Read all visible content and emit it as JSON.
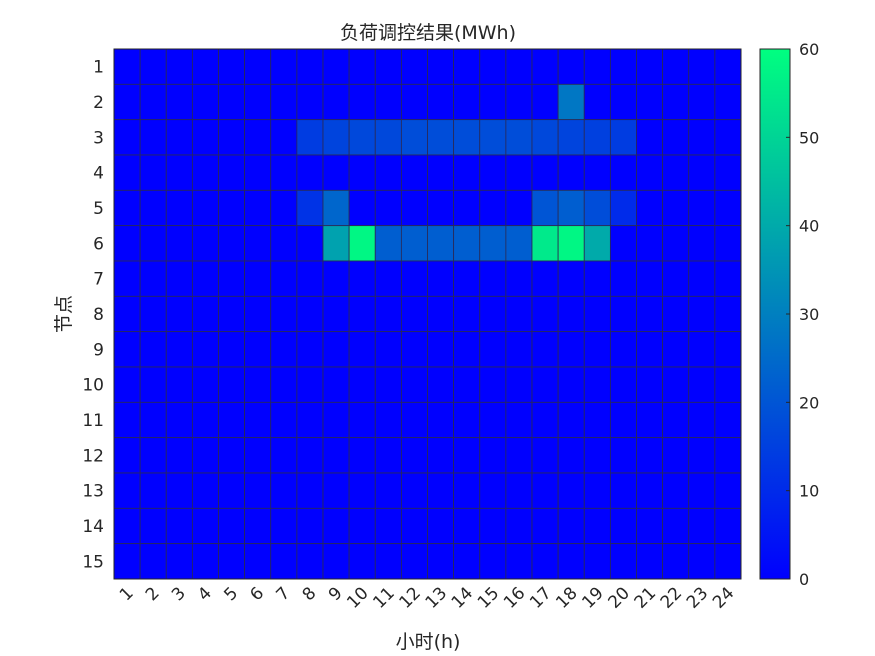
{
  "chart_data": {
    "type": "heatmap",
    "title": "负荷调控结果(MWh)",
    "xlabel": "小时(h)",
    "ylabel": "节点",
    "x": [
      "1",
      "2",
      "3",
      "4",
      "5",
      "6",
      "7",
      "8",
      "9",
      "10",
      "11",
      "12",
      "13",
      "14",
      "15",
      "16",
      "17",
      "18",
      "19",
      "20",
      "21",
      "22",
      "23",
      "24"
    ],
    "y": [
      "1",
      "2",
      "3",
      "4",
      "5",
      "6",
      "7",
      "8",
      "9",
      "10",
      "11",
      "12",
      "13",
      "14",
      "15"
    ],
    "values": [
      [
        0,
        0,
        0,
        0,
        0,
        0,
        0,
        0,
        0,
        0,
        0,
        0,
        0,
        0,
        0,
        0,
        0,
        0,
        0,
        0,
        0,
        0,
        0,
        0
      ],
      [
        0,
        0,
        0,
        0,
        0,
        0,
        0,
        0,
        0,
        0,
        0,
        0,
        0,
        0,
        0,
        0,
        0,
        28,
        0,
        0,
        0,
        0,
        0,
        0
      ],
      [
        0,
        0,
        0,
        0,
        0,
        0,
        0,
        14,
        16,
        17,
        17,
        18,
        18,
        18,
        18,
        18,
        17,
        16,
        15,
        14,
        0,
        0,
        0,
        0
      ],
      [
        0,
        0,
        0,
        0,
        0,
        0,
        0,
        0,
        0,
        0,
        0,
        0,
        0,
        0,
        0,
        0,
        0,
        0,
        0,
        0,
        0,
        0,
        0,
        0
      ],
      [
        0,
        0,
        0,
        0,
        0,
        0,
        0,
        12,
        24,
        0,
        0,
        0,
        0,
        0,
        0,
        0,
        20,
        22,
        18,
        10,
        0,
        0,
        0,
        0
      ],
      [
        0,
        0,
        0,
        0,
        0,
        0,
        0,
        0,
        38,
        58,
        22,
        22,
        22,
        22,
        22,
        22,
        55,
        58,
        40,
        0,
        0,
        0,
        0,
        0
      ],
      [
        0,
        0,
        0,
        0,
        0,
        0,
        0,
        0,
        0,
        0,
        0,
        0,
        0,
        0,
        0,
        0,
        0,
        0,
        0,
        0,
        0,
        0,
        0,
        0
      ],
      [
        0,
        0,
        0,
        0,
        0,
        0,
        0,
        0,
        0,
        0,
        0,
        0,
        0,
        0,
        0,
        0,
        0,
        0,
        0,
        0,
        0,
        0,
        0,
        0
      ],
      [
        0,
        0,
        0,
        0,
        0,
        0,
        0,
        0,
        0,
        0,
        0,
        0,
        0,
        0,
        0,
        0,
        0,
        0,
        0,
        0,
        0,
        0,
        0,
        0
      ],
      [
        0,
        0,
        0,
        0,
        0,
        0,
        0,
        0,
        0,
        0,
        0,
        0,
        0,
        0,
        0,
        0,
        0,
        0,
        0,
        0,
        0,
        0,
        0,
        0
      ],
      [
        0,
        0,
        0,
        0,
        0,
        0,
        0,
        0,
        0,
        0,
        0,
        0,
        0,
        0,
        0,
        0,
        0,
        0,
        0,
        0,
        0,
        0,
        0,
        0
      ],
      [
        0,
        0,
        0,
        0,
        0,
        0,
        0,
        0,
        0,
        0,
        0,
        0,
        0,
        0,
        0,
        0,
        0,
        0,
        0,
        0,
        0,
        0,
        0,
        0
      ],
      [
        0,
        0,
        0,
        0,
        0,
        0,
        0,
        0,
        0,
        0,
        0,
        0,
        0,
        0,
        0,
        0,
        0,
        0,
        0,
        0,
        0,
        0,
        0,
        0
      ],
      [
        0,
        0,
        0,
        0,
        0,
        0,
        0,
        0,
        0,
        0,
        0,
        0,
        0,
        0,
        0,
        0,
        0,
        0,
        0,
        0,
        0,
        0,
        0,
        0
      ],
      [
        0,
        0,
        0,
        0,
        0,
        0,
        0,
        0,
        0,
        0,
        0,
        0,
        0,
        0,
        0,
        0,
        0,
        0,
        0,
        0,
        0,
        0,
        0,
        0
      ]
    ],
    "colorbar": {
      "range": [
        0,
        60
      ],
      "ticks": [
        "0",
        "10",
        "20",
        "30",
        "40",
        "50",
        "60"
      ],
      "colormap": "winter",
      "low_color": "#0000ff",
      "high_color": "#00ff80"
    },
    "grid": true
  }
}
